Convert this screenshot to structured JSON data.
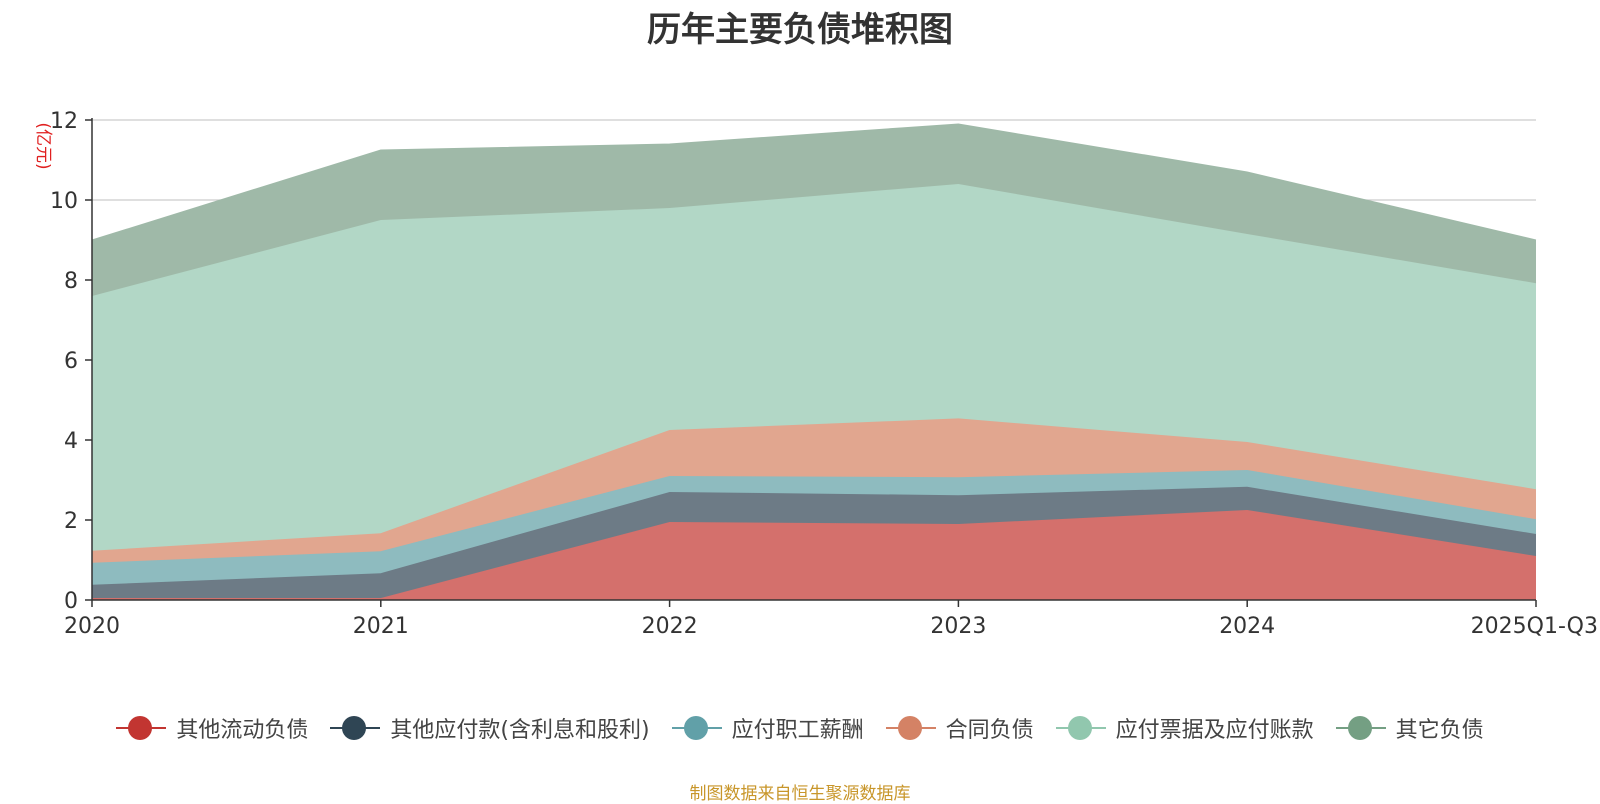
{
  "chart_data": {
    "type": "area",
    "stacked": true,
    "title": "历年主要负债堆积图",
    "ylabel": "(亿元)",
    "xlabel": "",
    "categories": [
      "2020",
      "2021",
      "2022",
      "2023",
      "2024",
      "2025Q1-Q3"
    ],
    "ylim": [
      0,
      12
    ],
    "yticks": [
      0,
      2,
      4,
      6,
      8,
      10,
      12
    ],
    "grid": true,
    "legend_position": "bottom",
    "series": [
      {
        "name": "其他流动负债",
        "color": "#c23531",
        "fill": "#d4706c",
        "values": [
          0.05,
          0.05,
          1.95,
          1.9,
          2.25,
          1.1
        ]
      },
      {
        "name": "其他应付款(含利息和股利)",
        "color": "#2f4554",
        "fill": "#6d7b86",
        "values": [
          0.33,
          0.62,
          0.75,
          0.72,
          0.58,
          0.55
        ]
      },
      {
        "name": "应付职工薪酬",
        "color": "#61a0a8",
        "fill": "#8ebbbf",
        "values": [
          0.55,
          0.55,
          0.4,
          0.45,
          0.42,
          0.37
        ]
      },
      {
        "name": "合同负债",
        "color": "#d48265",
        "fill": "#e1a68f",
        "values": [
          0.3,
          0.45,
          1.15,
          1.47,
          0.7,
          0.75
        ]
      },
      {
        "name": "应付票据及应付账款",
        "color": "#91c7ae",
        "fill": "#b2d7c6",
        "values": [
          6.37,
          7.83,
          5.55,
          5.86,
          5.2,
          5.15
        ]
      },
      {
        "name": "其它负债",
        "color": "#749f83",
        "fill": "#9fb9a8",
        "values": [
          1.4,
          1.75,
          1.6,
          1.5,
          1.55,
          1.08
        ]
      }
    ]
  },
  "footer": {
    "source": "制图数据来自恒生聚源数据库"
  }
}
